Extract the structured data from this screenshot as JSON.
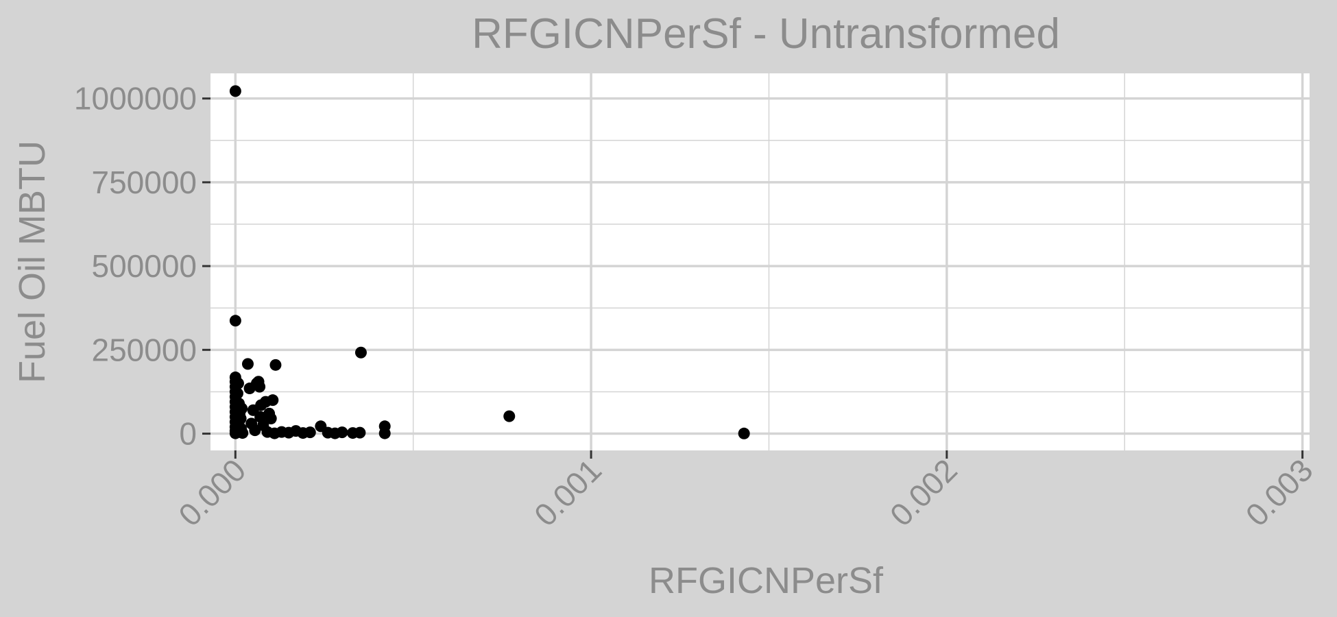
{
  "chart_data": {
    "type": "scatter",
    "title": "RFGICNPerSf - Untransformed",
    "xlabel": "RFGICNPerSf",
    "ylabel": "Fuel Oil MBTU",
    "xlim": [
      -7e-05,
      0.00302
    ],
    "ylim": [
      -50000,
      1075000
    ],
    "xticks": [
      0,
      0.001,
      0.002,
      0.003
    ],
    "xtick_labels": [
      "0.000",
      "0.001",
      "0.002",
      "0.003"
    ],
    "yticks": [
      0,
      250000,
      500000,
      750000,
      1000000
    ],
    "ytick_labels": [
      "0",
      "250000",
      "500000",
      "750000",
      "1000000"
    ],
    "grid": true,
    "legend": "none",
    "colors": {
      "background": "#d4d4d4",
      "panel": "#ffffff",
      "grid": "#d4d4d4",
      "point": "#000000",
      "text": "#8c8c8c"
    },
    "series": [
      {
        "points": [
          [
            1e-07,
            1022000
          ],
          [
            1e-07,
            337000
          ],
          [
            5e-08,
            168000
          ],
          [
            5e-08,
            155000
          ],
          [
            1e-07,
            140000
          ],
          [
            5e-08,
            125000
          ],
          [
            1e-07,
            110000
          ],
          [
            5e-08,
            95000
          ],
          [
            1e-07,
            80000
          ],
          [
            5e-08,
            65000
          ],
          [
            1e-07,
            50000
          ],
          [
            5e-08,
            35000
          ],
          [
            1e-07,
            20000
          ],
          [
            5e-08,
            8000
          ],
          [
            1e-07,
            1000
          ],
          [
            8e-06,
            150000
          ],
          [
            6e-06,
            120000
          ],
          [
            1e-05,
            90000
          ],
          [
            1.2e-05,
            60000
          ],
          [
            9e-06,
            30000
          ],
          [
            1.1e-05,
            5000
          ],
          [
            1.5e-05,
            45000
          ],
          [
            1.8e-05,
            75000
          ],
          [
            1.6e-05,
            15000
          ],
          [
            2e-05,
            2000
          ],
          [
            3.5e-05,
            208000
          ],
          [
            4e-05,
            135000
          ],
          [
            4.5e-05,
            30000
          ],
          [
            5e-05,
            70000
          ],
          [
            5.5e-05,
            10000
          ],
          [
            6e-05,
            150000
          ],
          [
            6.5e-05,
            155000
          ],
          [
            6.8e-05,
            140000
          ],
          [
            7e-05,
            50000
          ],
          [
            7.2e-05,
            85000
          ],
          [
            7.8e-05,
            25000
          ],
          [
            8.5e-05,
            95000
          ],
          [
            9e-05,
            5000
          ],
          [
            9.5e-05,
            60000
          ],
          [
            0.0001,
            45000
          ],
          [
            0.000105,
            100000
          ],
          [
            0.00011,
            1000
          ],
          [
            0.000113,
            205000
          ],
          [
            0.00013,
            5000
          ],
          [
            0.00015,
            3000
          ],
          [
            0.00017,
            8000
          ],
          [
            0.00019,
            2000
          ],
          [
            0.00021,
            4000
          ],
          [
            0.00024,
            22000
          ],
          [
            0.00026,
            3000
          ],
          [
            0.00028,
            1000
          ],
          [
            0.0003,
            4000
          ],
          [
            0.00033,
            2000
          ],
          [
            0.00035,
            3000
          ],
          [
            0.000353,
            242000
          ],
          [
            0.00042,
            22000
          ],
          [
            0.00042,
            1000
          ],
          [
            0.00077,
            52000
          ],
          [
            0.00143,
            500
          ]
        ]
      }
    ]
  }
}
